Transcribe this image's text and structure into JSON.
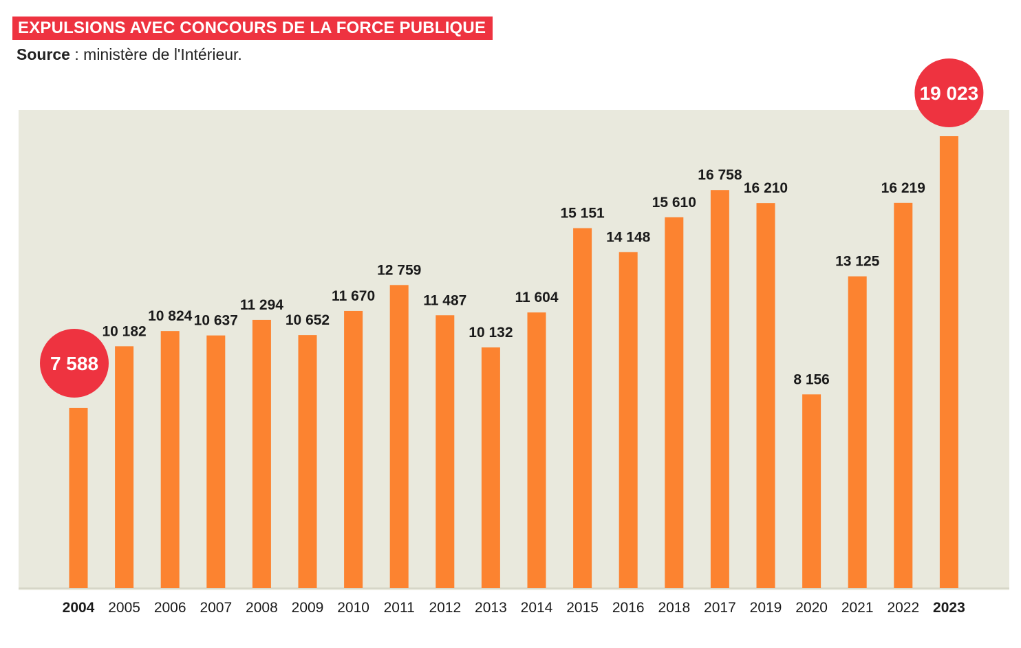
{
  "header": {
    "title": "EXPULSIONS AVEC CONCOURS DE LA FORCE PUBLIQUE",
    "source_label": "Source",
    "source_sep": " : ",
    "source_text": "ministère de l'Intérieur."
  },
  "colors": {
    "title_bg": "#ee3340",
    "plot_bg": "#e9e9dd",
    "bar": "#fc8330",
    "highlight_circle": "#ee3340"
  },
  "chart_data": {
    "type": "bar",
    "title": "EXPULSIONS AVEC CONCOURS DE LA FORCE PUBLIQUE",
    "xlabel": "",
    "ylabel": "",
    "ylim": [
      0,
      20000
    ],
    "grid": false,
    "categories": [
      "2004",
      "2005",
      "2006",
      "2007",
      "2008",
      "2009",
      "2010",
      "2011",
      "2012",
      "2013",
      "2014",
      "2015",
      "2016",
      "2018",
      "2017",
      "2019",
      "2020",
      "2021",
      "2022",
      "2023"
    ],
    "values": [
      7588,
      10182,
      10824,
      10637,
      11294,
      10652,
      11670,
      12759,
      11487,
      10132,
      11604,
      15151,
      14148,
      15610,
      16758,
      16210,
      8156,
      13125,
      16219,
      19023
    ],
    "value_labels": [
      "7 588",
      "10 182",
      "10 824",
      "10 637",
      "11 294",
      "10 652",
      "11 670",
      "12 759",
      "11 487",
      "10 132",
      "11 604",
      "15 151",
      "14 148",
      "15 610",
      "16 758",
      "16 210",
      "8 156",
      "13 125",
      "16 219",
      "19 023"
    ],
    "highlighted": [
      "2004",
      "2023"
    ]
  }
}
